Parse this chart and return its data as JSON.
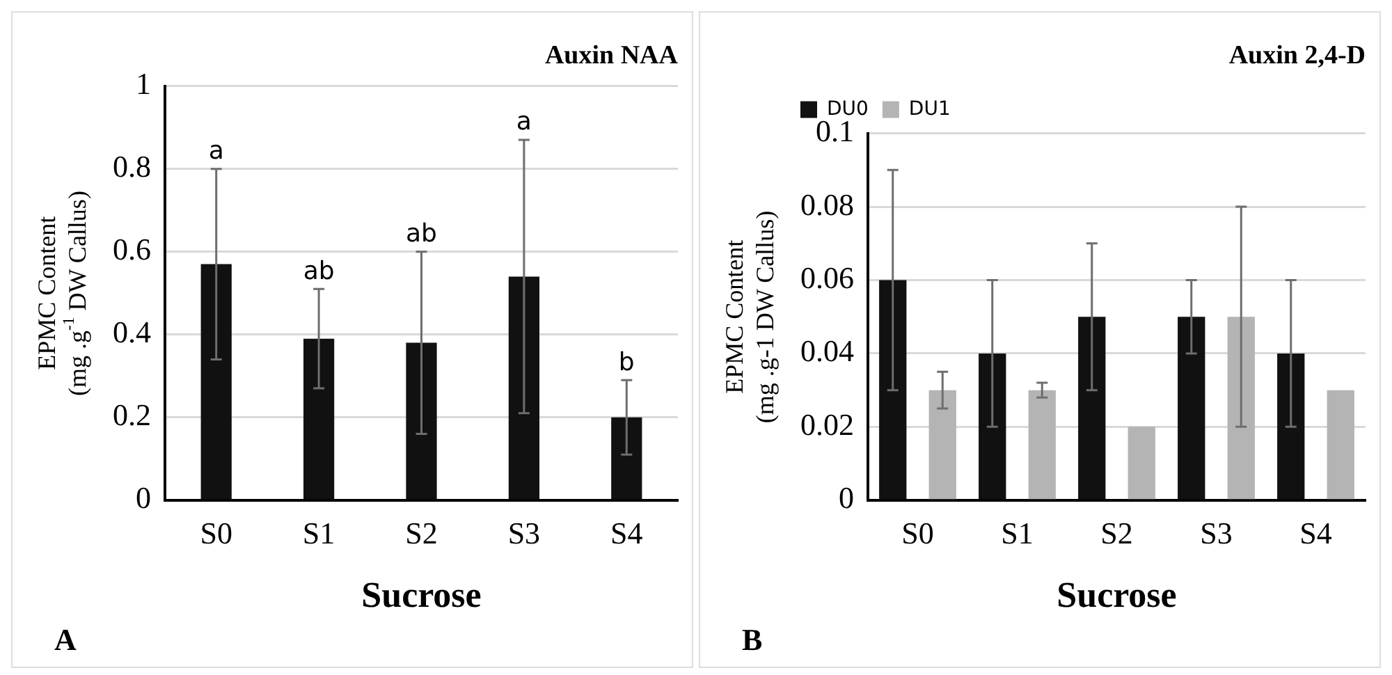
{
  "chart_data": [
    {
      "type": "bar",
      "title": "Auxin NAA",
      "xlabel": "Sucrose",
      "ylabel": "EPMC Content\n(mg .g$^{-1}$ DW Callus)",
      "categories": [
        "S0",
        "S1",
        "S2",
        "S3",
        "S4"
      ],
      "series": [
        {
          "color": "#111111",
          "values": [
            0.57,
            0.39,
            0.38,
            0.54,
            0.2
          ],
          "errors": [
            [
              0.34,
              0.8
            ],
            [
              0.27,
              0.51
            ],
            [
              0.16,
              0.6
            ],
            [
              0.21,
              0.87
            ],
            [
              0.11,
              0.29
            ]
          ]
        }
      ],
      "ylim": [
        0,
        1
      ],
      "yticks": [
        0,
        0.2,
        0.4,
        0.6,
        0.8,
        1
      ],
      "grid": "y",
      "legend": false,
      "annotations": [
        {
          "text": "a",
          "x": "S0",
          "y": 0.8
        },
        {
          "text": "ab",
          "x": "S1",
          "y": 0.51
        },
        {
          "text": "ab",
          "x": "S2",
          "y": 0.6
        },
        {
          "text": "a",
          "x": "S3",
          "y": 0.87
        },
        {
          "text": "b",
          "x": "S4",
          "y": 0.29
        },
        "A"
      ]
    },
    {
      "type": "bar",
      "title": "Auxin 2,4-D",
      "xlabel": "Sucrose",
      "ylabel": "EPMC Content\n(mg .g-1 DW Callus)",
      "categories": [
        "S0",
        "S1",
        "S2",
        "S3",
        "S4"
      ],
      "series": [
        {
          "name": "DU0",
          "color": "#111111",
          "values": [
            0.06,
            0.04,
            0.05,
            0.05,
            0.04
          ],
          "errors": [
            [
              0.03,
              0.09
            ],
            [
              0.02,
              0.06
            ],
            [
              0.03,
              0.07
            ],
            [
              0.04,
              0.06
            ],
            [
              0.02,
              0.06
            ]
          ]
        },
        {
          "name": "DU1",
          "color": "#b4b4b4",
          "values": [
            0.03,
            0.03,
            0.02,
            0.05,
            0.03
          ],
          "errors": [
            [
              0.025,
              0.035
            ],
            [
              0.028,
              0.032
            ],
            null,
            [
              0.02,
              0.08
            ],
            null
          ]
        }
      ],
      "ylim": [
        0,
        0.1
      ],
      "yticks": [
        0,
        0.02,
        0.04,
        0.06,
        0.08,
        0.1
      ],
      "grid": "y",
      "legend": "top left",
      "annotations": [
        "B"
      ]
    }
  ]
}
